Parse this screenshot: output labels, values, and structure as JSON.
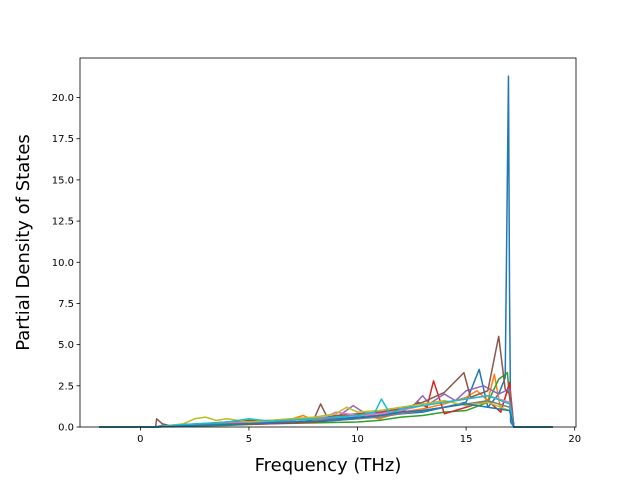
{
  "chart_data": {
    "type": "line",
    "title": "",
    "xlabel": "Frequency (THz)",
    "ylabel": "Partial Density of States",
    "xlim": [
      -2.78,
      20.06
    ],
    "ylim": [
      0.0,
      22.4
    ],
    "xticks": [
      0,
      5,
      10,
      15,
      20
    ],
    "xtick_labels": [
      "0",
      "5",
      "10",
      "15",
      "20"
    ],
    "yticks": [
      0.0,
      2.5,
      5.0,
      7.5,
      10.0,
      12.5,
      15.0,
      17.5,
      20.0
    ],
    "ytick_labels": [
      "0.0",
      "2.5",
      "5.0",
      "7.5",
      "10.0",
      "12.5",
      "15.0",
      "17.5",
      "20.0"
    ],
    "grid": false,
    "legend": "none",
    "series": [
      {
        "color": "#1f77b4",
        "x": [
          -1.9,
          0.7,
          1.0,
          1.5,
          2.0,
          3.0,
          4.0,
          5.0,
          6.0,
          7.0,
          8.0,
          9.0,
          10.0,
          11.0,
          12.0,
          13.0,
          14.0,
          15.0,
          15.6,
          16.0,
          16.5,
          16.8,
          16.95,
          17.0,
          17.05,
          17.2,
          19.0
        ],
        "y": [
          0,
          0,
          0.1,
          0.05,
          0.15,
          0.2,
          0.3,
          0.25,
          0.35,
          0.3,
          0.4,
          0.5,
          0.6,
          0.7,
          0.8,
          0.9,
          1.2,
          1.5,
          3.5,
          1.2,
          2.0,
          3.0,
          21.3,
          8.0,
          0.3,
          0,
          0
        ]
      },
      {
        "color": "#ff7f0e",
        "x": [
          -1.9,
          0.7,
          2.0,
          3.0,
          4.0,
          5.0,
          6.0,
          7.0,
          7.5,
          8.0,
          9.0,
          10.0,
          11.0,
          12.0,
          13.0,
          14.0,
          15.0,
          15.5,
          16.0,
          16.3,
          16.6,
          17.0,
          17.2,
          19.0
        ],
        "y": [
          0,
          0,
          0.1,
          0.2,
          0.15,
          0.3,
          0.4,
          0.5,
          0.7,
          0.4,
          0.6,
          0.8,
          0.5,
          0.9,
          1.1,
          1.4,
          1.8,
          2.2,
          1.6,
          3.2,
          1.0,
          2.6,
          0,
          0
        ]
      },
      {
        "color": "#2ca02c",
        "x": [
          -1.9,
          0.7,
          2.0,
          4.0,
          6.0,
          8.0,
          10.0,
          11.0,
          12.0,
          13.0,
          14.0,
          15.0,
          16.0,
          16.5,
          16.9,
          17.0,
          17.2,
          19.0
        ],
        "y": [
          0,
          0,
          0.05,
          0.1,
          0.2,
          0.25,
          0.3,
          0.4,
          0.6,
          0.7,
          0.9,
          1.0,
          1.5,
          2.9,
          3.3,
          1.8,
          0,
          0
        ]
      },
      {
        "color": "#d62728",
        "x": [
          -1.9,
          0.7,
          2.0,
          4.0,
          6.0,
          8.0,
          9.0,
          10.0,
          11.0,
          12.0,
          12.8,
          13.2,
          13.5,
          14.0,
          15.0,
          16.0,
          16.6,
          17.0,
          17.2,
          19.0
        ],
        "y": [
          0,
          0,
          0.1,
          0.15,
          0.2,
          0.3,
          0.4,
          0.5,
          0.7,
          0.9,
          1.5,
          1.2,
          2.8,
          0.8,
          1.2,
          1.6,
          0.9,
          2.7,
          0,
          0
        ]
      },
      {
        "color": "#9467bd",
        "x": [
          -1.9,
          0.7,
          3.0,
          5.0,
          7.0,
          9.0,
          9.8,
          10.5,
          11.5,
          12.5,
          13.0,
          13.3,
          14.0,
          14.5,
          15.0,
          15.8,
          16.5,
          17.0,
          17.2,
          19.0
        ],
        "y": [
          0,
          0,
          0.2,
          0.35,
          0.45,
          0.55,
          1.3,
          0.7,
          1.0,
          1.2,
          1.9,
          1.4,
          2.0,
          1.6,
          2.2,
          2.5,
          2.0,
          2.3,
          0,
          0
        ]
      },
      {
        "color": "#8c564b",
        "x": [
          -1.9,
          0.7,
          0.75,
          1.0,
          1.3,
          2.0,
          3.0,
          4.0,
          5.0,
          6.0,
          7.0,
          8.0,
          8.3,
          8.6,
          9.0,
          10.0,
          11.0,
          12.0,
          13.0,
          14.0,
          14.9,
          15.2,
          16.0,
          16.5,
          16.8,
          17.0,
          17.2,
          19.0
        ],
        "y": [
          0,
          0,
          0.5,
          0.2,
          0.1,
          0.15,
          0.2,
          0.3,
          0.4,
          0.35,
          0.5,
          0.5,
          1.4,
          0.6,
          0.7,
          0.8,
          0.9,
          1.1,
          1.5,
          2.1,
          3.3,
          1.8,
          2.2,
          5.5,
          2.3,
          2.0,
          0,
          0
        ]
      },
      {
        "color": "#e377c2",
        "x": [
          -1.9,
          0.7,
          3.0,
          5.0,
          7.0,
          8.5,
          9.0,
          10.0,
          11.0,
          12.0,
          13.0,
          14.0,
          15.0,
          16.0,
          17.0,
          17.2,
          19.0
        ],
        "y": [
          0,
          0,
          0.2,
          0.3,
          0.4,
          0.6,
          0.9,
          0.7,
          0.8,
          1.0,
          1.3,
          1.5,
          1.7,
          1.9,
          1.5,
          0,
          0
        ]
      },
      {
        "color": "#7f7f7f",
        "x": [
          -1.9,
          0.7,
          2.0,
          4.0,
          6.0,
          8.0,
          10.0,
          11.0,
          12.0,
          13.0,
          14.0,
          15.0,
          16.0,
          17.0,
          17.2,
          19.0
        ],
        "y": [
          0,
          0,
          0.1,
          0.2,
          0.25,
          0.35,
          0.5,
          0.6,
          0.8,
          1.0,
          1.2,
          1.4,
          1.6,
          1.2,
          0,
          0
        ]
      },
      {
        "color": "#bcbd22",
        "x": [
          -1.9,
          0.7,
          2.0,
          2.5,
          3.0,
          3.5,
          4.0,
          5.0,
          6.0,
          7.0,
          8.0,
          9.0,
          9.5,
          10.0,
          11.0,
          12.0,
          13.0,
          14.0,
          15.0,
          16.0,
          17.0,
          17.2,
          19.0
        ],
        "y": [
          0,
          0,
          0.2,
          0.5,
          0.6,
          0.4,
          0.5,
          0.3,
          0.4,
          0.5,
          0.6,
          0.8,
          1.2,
          0.9,
          1.0,
          1.2,
          1.4,
          1.6,
          1.3,
          1.5,
          1.0,
          0,
          0
        ]
      },
      {
        "color": "#17becf",
        "x": [
          -1.9,
          0.7,
          2.0,
          4.0,
          5.0,
          6.0,
          8.0,
          10.0,
          10.8,
          11.1,
          11.5,
          12.0,
          13.0,
          14.0,
          15.0,
          16.0,
          17.0,
          17.2,
          19.0
        ],
        "y": [
          0,
          0,
          0.15,
          0.3,
          0.5,
          0.35,
          0.5,
          0.7,
          0.9,
          1.7,
          0.8,
          1.1,
          1.3,
          1.5,
          1.7,
          1.9,
          1.4,
          0,
          0
        ]
      },
      {
        "color": "#1f77b4",
        "x": [
          -1.9,
          0.7,
          3.0,
          5.0,
          7.0,
          9.0,
          11.0,
          12.0,
          13.0,
          14.0,
          15.0,
          16.0,
          17.0,
          17.2,
          19.0
        ],
        "y": [
          0,
          0,
          0.1,
          0.2,
          0.3,
          0.4,
          0.7,
          0.9,
          1.0,
          1.2,
          1.4,
          1.2,
          1.0,
          0,
          0
        ]
      }
    ]
  }
}
